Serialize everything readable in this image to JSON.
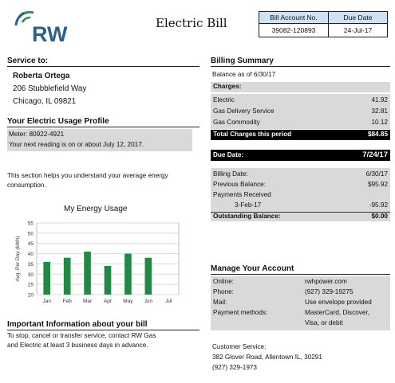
{
  "header": {
    "logo_text": "RW",
    "title": "Electric Bill",
    "account_table": {
      "col1_header": "Bill Account No.",
      "col2_header": "Due Date",
      "account_no": "39082-120893",
      "due_date": "24-Jul-17"
    },
    "colors": {
      "brand_green": "#2e8b57",
      "brand_blue": "#2f5f8a",
      "table_header": "#cfe2f3"
    }
  },
  "service": {
    "heading": "Service to:",
    "name": "Roberta Ortega",
    "address1": "206 Stubblefield Way",
    "address2": "Chicago, IL 09821"
  },
  "usage_profile": {
    "heading": "Your Electric Usage Profile",
    "meter": "Meter: 80922-4921",
    "next_reading": "Your next reading is on or about July 12, 2017.",
    "description": "This section helps you understand your average energy consumption."
  },
  "chart_data": {
    "type": "bar",
    "title": "My Energy Usage",
    "ylabel": "Avg. Per Day (kWh)",
    "xlabel": "",
    "categories": [
      "Jan",
      "Feb",
      "Mar",
      "Apr",
      "May",
      "Jun",
      "Jul"
    ],
    "values": [
      36,
      38,
      41,
      34,
      40,
      38,
      null
    ],
    "ylim": [
      20,
      55
    ],
    "yticks": [
      20,
      25,
      30,
      35,
      40,
      45,
      50,
      55
    ],
    "grid": true,
    "bar_color": "#1e8a44"
  },
  "important": {
    "heading": "Important Information about your bill",
    "text1": "To stop, cancel or transfer service, contact RW Gas",
    "text2": "and Electric at least 3 business days in advance."
  },
  "billing_summary": {
    "heading": "Billing Summary",
    "balance_as_of": "Balance as of 6/30/17",
    "charges_label": "Charges:",
    "charges": [
      {
        "label": "Electric",
        "value": "41.92"
      },
      {
        "label": "Gas Delivery Service",
        "value": "32.81"
      },
      {
        "label": "Gas Commodity",
        "value": "10.12"
      }
    ],
    "total_label": "Total Charges this period",
    "total_value": "$84.85",
    "due_label": "Due Date:",
    "due_value": "7/24/17",
    "billing_date_label": "Billing Date:",
    "billing_date_value": "6/30/17",
    "prev_balance_label": "Previous Balance:",
    "prev_balance_value": "$95.92",
    "payments_label": "Payments Received",
    "payment_date": "3-Feb-17",
    "payment_value": "-95.92",
    "outstanding_label": "Outstanding Balance:",
    "outstanding_value": "$0.00"
  },
  "manage_account": {
    "heading": "Manage Your Account",
    "online_label": "Online:",
    "online_value": "rwhpower.com",
    "phone_label": "Phone:",
    "phone_value": "(927) 329-19275",
    "mail_label": "Mail:",
    "mail_value": "Use envelope provided",
    "payment_label": "Payment methods:",
    "payment_value1": "MasterCard, Discover,",
    "payment_value2": "Visa, or debit"
  },
  "customer_service": {
    "label": "Customer Service:",
    "address": "382 Glover Road, Allentown IL, 30291",
    "phone": "(927) 329-1973"
  }
}
